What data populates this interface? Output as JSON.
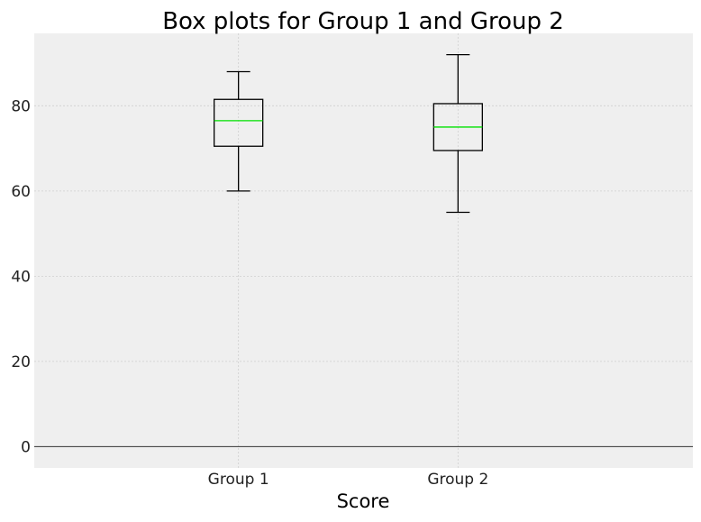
{
  "chart_data": {
    "type": "box",
    "title": "Box plots for Group 1 and Group 2",
    "xlabel": "Score",
    "ylabel": "",
    "ylim": [
      -5,
      97
    ],
    "yticks": [
      0,
      20,
      40,
      60,
      80
    ],
    "grid": true,
    "categories": [
      "Group 1",
      "Group 2"
    ],
    "boxes": [
      {
        "name": "Group 1",
        "whisker_low": 60,
        "q1": 70.5,
        "median": 76.5,
        "q3": 81.5,
        "whisker_high": 88
      },
      {
        "name": "Group 2",
        "whisker_low": 55,
        "q1": 69.5,
        "median": 75,
        "q3": 80.5,
        "whisker_high": 92
      }
    ],
    "colors": {
      "plot_background": "#efefef",
      "grid": "#cfcfcf",
      "box": "#000000",
      "median": "#00e000",
      "zero_line": "#333333"
    }
  }
}
